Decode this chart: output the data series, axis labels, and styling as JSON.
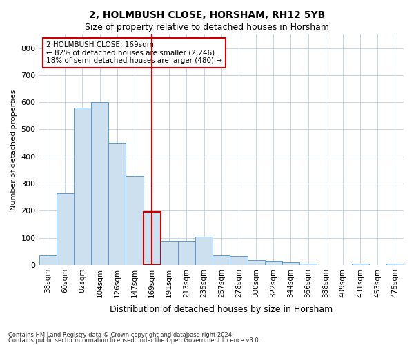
{
  "title1": "2, HOLMBUSH CLOSE, HORSHAM, RH12 5YB",
  "title2": "Size of property relative to detached houses in Horsham",
  "xlabel": "Distribution of detached houses by size in Horsham",
  "ylabel": "Number of detached properties",
  "footnote1": "Contains HM Land Registry data © Crown copyright and database right 2024.",
  "footnote2": "Contains public sector information licensed under the Open Government Licence v3.0.",
  "annotation_line1": "2 HOLMBUSH CLOSE: 169sqm",
  "annotation_line2": "← 82% of detached houses are smaller (2,246)",
  "annotation_line3": "18% of semi-detached houses are larger (480) →",
  "bar_color": "#cce0f0",
  "bar_edge_color": "#5b9bd5",
  "highlight_bar_color": "#cce0f0",
  "highlight_bar_edge_color": "#cc0000",
  "vline_color": "#cc0000",
  "categories": [
    "38sqm",
    "60sqm",
    "82sqm",
    "104sqm",
    "126sqm",
    "147sqm",
    "169sqm",
    "191sqm",
    "213sqm",
    "235sqm",
    "257sqm",
    "278sqm",
    "300sqm",
    "322sqm",
    "344sqm",
    "366sqm",
    "388sqm",
    "409sqm",
    "431sqm",
    "453sqm",
    "475sqm"
  ],
  "values": [
    35,
    265,
    580,
    600,
    450,
    328,
    195,
    90,
    90,
    103,
    35,
    32,
    18,
    15,
    10,
    5,
    0,
    0,
    5,
    0,
    5
  ],
  "highlight_index": 6,
  "ylim": [
    0,
    850
  ],
  "yticks": [
    0,
    100,
    200,
    300,
    400,
    500,
    600,
    700,
    800
  ],
  "background_color": "#ffffff",
  "grid_color": "#c8d4e8"
}
